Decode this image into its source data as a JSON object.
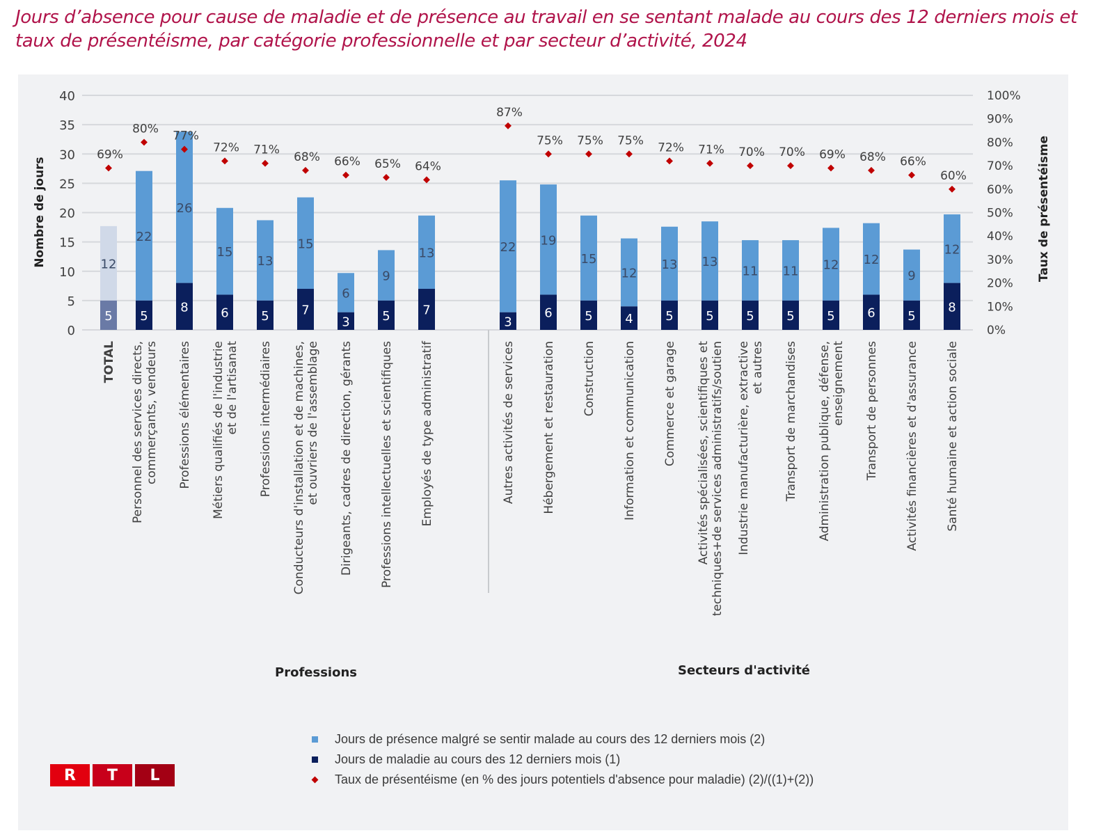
{
  "header": {
    "title": "Jours d’absence pour cause de maladie et de présence au travail en se sentant malade au cours des 12 derniers mois et taux de présentéisme, par catégorie professionnelle et par secteur d’activité, 2024"
  },
  "logo": {
    "letters": [
      "R",
      "T",
      "L"
    ],
    "colors": [
      "#e2000f",
      "#c8001a",
      "#a30014"
    ]
  },
  "colors": {
    "title": "#b0134a",
    "presence": "#5b9bd5",
    "maladie": "#0b1f5c",
    "total_presence": "#d0d9e8",
    "total_maladie": "#6a7aa6",
    "taux": "#c00000",
    "grid": "#d6d8dc",
    "background": "#f1f2f4"
  },
  "chart_data": {
    "type": "bar",
    "stacked": true,
    "title": "Jours d’absence pour cause de maladie et de présence au travail en se sentant malade au cours des 12 derniers mois et taux de présentéisme, par catégorie professionnelle et par secteur d’activité, 2024",
    "ylabel": "Nombre de jours",
    "y2label": "Taux de présentéisme",
    "ylim": [
      0,
      40
    ],
    "y2lim": [
      0,
      100
    ],
    "yticks": [
      "0",
      "5",
      "10",
      "15",
      "20",
      "25",
      "30",
      "35",
      "40"
    ],
    "y2ticks": [
      "0%",
      "10%",
      "20%",
      "30%",
      "40%",
      "50%",
      "60%",
      "70%",
      "80%",
      "90%",
      "100%"
    ],
    "grid": true,
    "legend_position": "bottom",
    "groups": [
      {
        "label": "Professions",
        "count": 9
      },
      {
        "label": "Secteurs d'activité",
        "count": 12
      }
    ],
    "categories": [
      "TOTAL",
      "Personnel des services directs,\ncommerçants, vendeurs",
      "Professions élémentaires",
      "Métiers qualifiés de l'industrie\net de l'artisanat",
      "Professions intermédiaires",
      "Conducteurs d'installation et de machines,\net ouvriers de l'assemblage",
      "Dirigeants, cadres de direction, gérants",
      "Professions intellectuelles et scientifiques",
      "Employés de type administratif",
      "Autres activités de services",
      "Hébergement et restauration",
      "Construction",
      "Information et communication",
      "Commerce et garage",
      "Activités spécialisées, scientifiques et\ntechniques+de services administratifs/soutien",
      "Industrie manufacturière, extractive\net autres",
      "Transport de marchandises",
      "Administration publique, défense,\nenseignement",
      "Transport de personnes",
      "Activités financières et d'assurance",
      "Santé humaine et action sociale"
    ],
    "series": [
      {
        "name": "Jours de maladie au cours des 12 derniers mois (1)",
        "kind": "bar",
        "values": [
          5,
          5,
          8,
          6,
          5,
          7,
          3,
          5,
          7,
          3,
          6,
          5,
          4,
          5,
          5,
          5,
          5,
          5,
          6,
          5,
          8
        ]
      },
      {
        "name": "Jours de présence malgré se sentir malade au cours des 12 derniers mois (2)",
        "kind": "bar",
        "values": [
          12,
          22,
          26,
          15,
          13,
          15,
          6,
          9,
          13,
          22,
          19,
          15,
          12,
          13,
          13,
          11,
          11,
          12,
          12,
          9,
          12
        ]
      },
      {
        "name": "Taux de présentéisme (en % des jours potentiels d'absence pour maladie) (2)/((1)+(2))",
        "kind": "scatter",
        "axis": "right",
        "values": [
          69,
          80,
          77,
          72,
          71,
          68,
          66,
          65,
          64,
          87,
          75,
          75,
          75,
          72,
          71,
          70,
          70,
          69,
          68,
          66,
          60
        ],
        "labels": [
          "69%",
          "80%",
          "77%",
          "72%",
          "71%",
          "68%",
          "66%",
          "65%",
          "64%",
          "87%",
          "75%",
          "75%",
          "75%",
          "72%",
          "71%",
          "70%",
          "70%",
          "69%",
          "68%",
          "66%",
          "60%"
        ]
      }
    ],
    "bar_heights_total_days": [
      17.7,
      27.1,
      33.8,
      20.8,
      18.7,
      22.6,
      9.7,
      13.6,
      19.5,
      25.5,
      24.8,
      19.5,
      15.6,
      17.6,
      18.5,
      15.3,
      15.3,
      17.4,
      18.2,
      13.7,
      19.7
    ]
  },
  "legend": {
    "items": [
      {
        "label": "Jours de présence malgré se sentir malade au cours des 12 derniers mois (2)",
        "type": "square",
        "color": "#5b9bd5"
      },
      {
        "label": "Jours de maladie au cours des 12 derniers mois (1)",
        "type": "square",
        "color": "#0b1f5c"
      },
      {
        "label": "Taux de présentéisme (en % des jours potentiels d'absence pour maladie) (2)/((1)+(2))",
        "type": "diamond",
        "color": "#c00000"
      }
    ]
  }
}
